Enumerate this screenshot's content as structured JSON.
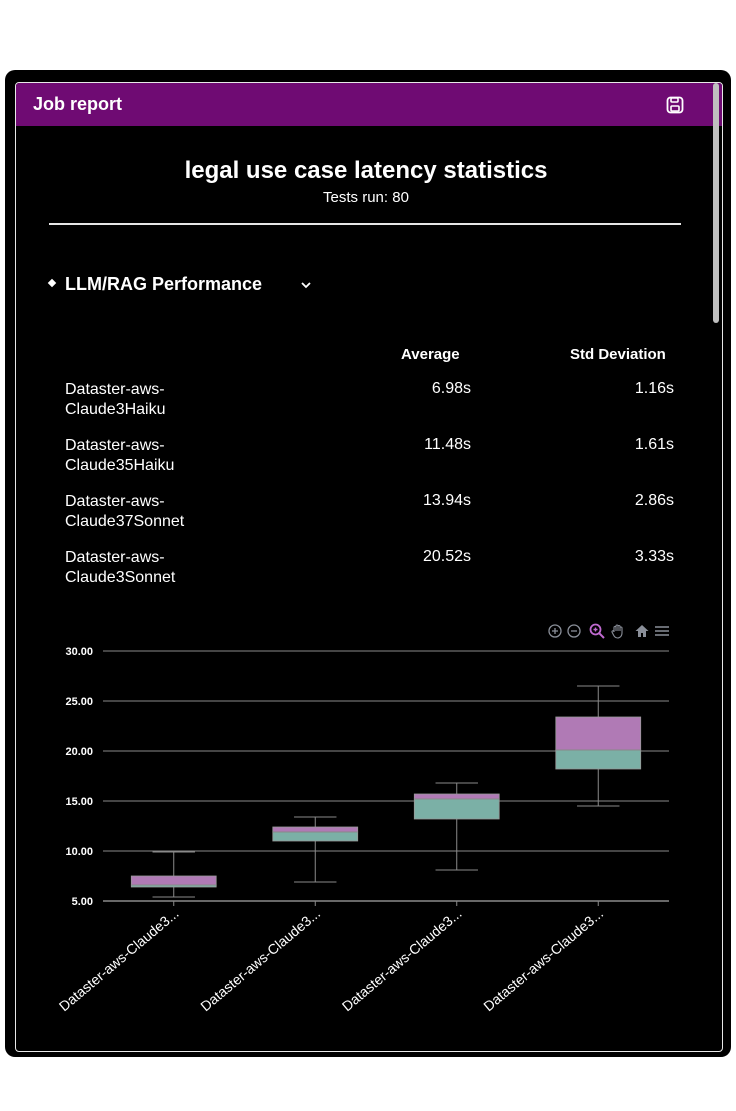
{
  "header": {
    "title": "Job report",
    "save_icon": "save-icon"
  },
  "report": {
    "title": "legal use case latency statistics",
    "subtitle": "Tests run: 80"
  },
  "section": {
    "title": "LLM/RAG Performance"
  },
  "table": {
    "columns": [
      "Average",
      "Std Deviation"
    ],
    "rows": [
      {
        "name_line1": "Dataster-aws-",
        "name_line2": "Claude3Haiku",
        "average": "6.98s",
        "std": "1.16s"
      },
      {
        "name_line1": "Dataster-aws-",
        "name_line2": "Claude35Haiku",
        "average": "11.48s",
        "std": "1.61s"
      },
      {
        "name_line1": "Dataster-aws-",
        "name_line2": "Claude37Sonnet",
        "average": "13.94s",
        "std": "2.86s"
      },
      {
        "name_line1": "Dataster-aws-",
        "name_line2": "Claude3Sonnet",
        "average": "20.52s",
        "std": "3.33s"
      }
    ]
  },
  "toolbar": {
    "icons": [
      "zoom-in-icon",
      "zoom-out-icon",
      "zoom-icon",
      "pan-icon",
      "home-icon",
      "menu-icon"
    ]
  },
  "chart_data": {
    "type": "boxplot",
    "categories": [
      "Dataster-aws-Claude3...",
      "Dataster-aws-Claude3...",
      "Dataster-aws-Claude3...",
      "Dataster-aws-Claude3..."
    ],
    "boxes": [
      {
        "min": 5.4,
        "q1": 6.4,
        "median": 6.6,
        "q3": 7.5,
        "max": 9.9
      },
      {
        "min": 6.9,
        "q1": 11.0,
        "median": 11.9,
        "q3": 12.4,
        "max": 13.4
      },
      {
        "min": 8.1,
        "q1": 13.2,
        "median": 15.2,
        "q3": 15.7,
        "max": 16.8
      },
      {
        "min": 14.5,
        "q1": 18.2,
        "median": 20.1,
        "q3": 23.4,
        "max": 26.5
      }
    ],
    "yticks": [
      "30.00",
      "25.00",
      "20.00",
      "15.00",
      "10.00",
      "5.00"
    ],
    "ylim": [
      5,
      30
    ],
    "grid": true,
    "colors": {
      "upper": "#b07ab5",
      "lower": "#7bb0a6",
      "grid": "#8a8a8a",
      "accent": "#6f0b73"
    }
  }
}
